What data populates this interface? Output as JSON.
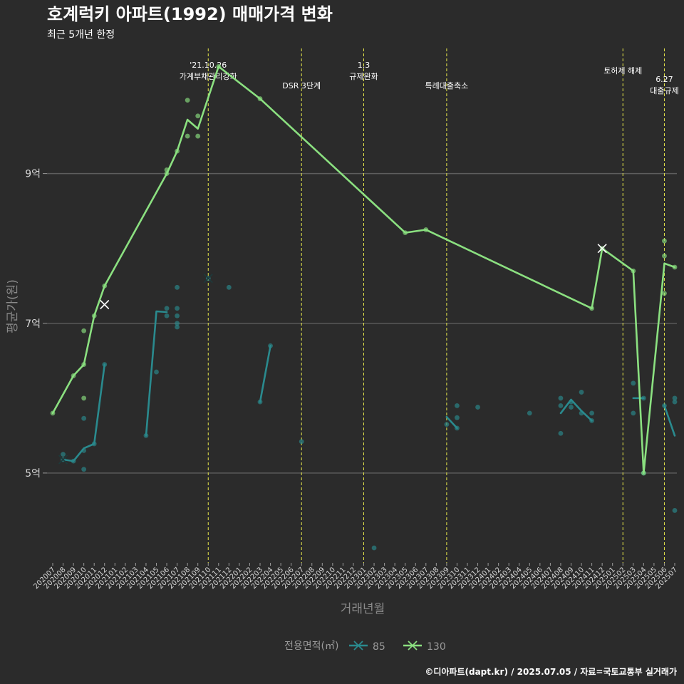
{
  "chart_data": {
    "type": "line",
    "title": "호계럭키 아파트(1992) 매매가격 변화",
    "subtitle": "최근 5개년 한정",
    "xlabel": "거래년월",
    "ylabel": "평균가(원)",
    "ylim": [
      38000,
      107000
    ],
    "y_ticks": [
      {
        "value": 50000,
        "label": "5억"
      },
      {
        "value": 70000,
        "label": "7억"
      },
      {
        "value": 90000,
        "label": "9억"
      }
    ],
    "x_categories": [
      "202007",
      "202008",
      "202009",
      "202010",
      "202011",
      "202012",
      "202101",
      "202102",
      "202103",
      "202104",
      "202105",
      "202106",
      "202107",
      "202108",
      "202109",
      "202110",
      "202111",
      "202112",
      "202201",
      "202202",
      "202203",
      "202204",
      "202205",
      "202206",
      "202207",
      "202208",
      "202209",
      "202210",
      "202211",
      "202212",
      "202301",
      "202302",
      "202303",
      "202304",
      "202305",
      "202306",
      "202307",
      "202308",
      "202309",
      "202310",
      "202311",
      "202312",
      "202401",
      "202402",
      "202403",
      "202404",
      "202405",
      "202406",
      "202407",
      "202408",
      "202409",
      "202410",
      "202411",
      "202412",
      "202501",
      "202502",
      "202503",
      "202504",
      "202505",
      "202506",
      "202507"
    ],
    "legend_title": "전용면적(㎡)",
    "series": [
      {
        "name": "85",
        "color": "#2a8a8e",
        "line_segments": [
          [
            [
              "202008",
              51800
            ],
            [
              "202009",
              51600
            ],
            [
              "202010",
              53300
            ],
            [
              "202011",
              53900
            ],
            [
              "202012",
              64500
            ]
          ],
          [
            [
              "202104",
              55000
            ],
            [
              "202105",
              71600
            ],
            [
              "202106",
              71500
            ]
          ],
          [
            [
              "202203",
              59500
            ],
            [
              "202204",
              67000
            ]
          ],
          [
            [
              "202309",
              57500
            ],
            [
              "202310",
              56000
            ]
          ],
          [
            [
              "202408",
              58000
            ],
            [
              "202409",
              59800
            ],
            [
              "202410",
              58300
            ],
            [
              "202411",
              57000
            ]
          ],
          [
            [
              "202503",
              60000
            ],
            [
              "202504",
              60000
            ]
          ],
          [
            [
              "202506",
              59000
            ],
            [
              "202507",
              55000
            ]
          ]
        ],
        "points": [
          [
            "202008",
            52500
          ],
          [
            "202008",
            51800
          ],
          [
            "202009",
            51600
          ],
          [
            "202010",
            53000
          ],
          [
            "202010",
            50500
          ],
          [
            "202010",
            57300
          ],
          [
            "202011",
            53900
          ],
          [
            "202012",
            64500
          ],
          [
            "202104",
            55000
          ],
          [
            "202105",
            63500
          ],
          [
            "202106",
            72000
          ],
          [
            "202106",
            71000
          ],
          [
            "202107",
            72000
          ],
          [
            "202107",
            71000
          ],
          [
            "202107",
            70000
          ],
          [
            "202107",
            69500
          ],
          [
            "202107",
            74800
          ],
          [
            "202110",
            76000
          ],
          [
            "202112",
            74800
          ],
          [
            "202203",
            59500
          ],
          [
            "202204",
            67000
          ],
          [
            "202207",
            54200
          ],
          [
            "202302",
            40000
          ],
          [
            "202309",
            56500
          ],
          [
            "202310",
            57400
          ],
          [
            "202310",
            56000
          ],
          [
            "202310",
            59000
          ],
          [
            "202312",
            58800
          ],
          [
            "202405",
            58000
          ],
          [
            "202408",
            60000
          ],
          [
            "202408",
            59000
          ],
          [
            "202408",
            55300
          ],
          [
            "202409",
            59500
          ],
          [
            "202409",
            58800
          ],
          [
            "202410",
            60800
          ],
          [
            "202410",
            58000
          ],
          [
            "202411",
            58000
          ],
          [
            "202411",
            57000
          ],
          [
            "202503",
            62000
          ],
          [
            "202503",
            58000
          ],
          [
            "202504",
            60000
          ],
          [
            "202504",
            50000
          ],
          [
            "202506",
            59000
          ],
          [
            "202507",
            59500
          ],
          [
            "202507",
            60000
          ],
          [
            "202507",
            45000
          ]
        ],
        "x_marks": [
          [
            "202008",
            51800
          ],
          [
            "202110",
            76000
          ]
        ]
      },
      {
        "name": "130",
        "color": "#8be080",
        "line_segments": [
          [
            [
              "202007",
              58000
            ],
            [
              "202009",
              63000
            ],
            [
              "202010",
              64500
            ],
            [
              "202011",
              71000
            ],
            [
              "202012",
              75000
            ],
            [
              "202106",
              90000
            ],
            [
              "202107",
              93000
            ],
            [
              "202108",
              97200
            ],
            [
              "202109",
              96000
            ],
            [
              "202111",
              104300
            ],
            [
              "202203",
              100000
            ],
            [
              "202305",
              82100
            ],
            [
              "202307",
              82500
            ],
            [
              "202411",
              72000
            ],
            [
              "202412",
              80000
            ],
            [
              "202503",
              77000
            ],
            [
              "202504",
              50000
            ],
            [
              "202506",
              78000
            ],
            [
              "202507",
              77500
            ]
          ]
        ],
        "points": [
          [
            "202007",
            58000
          ],
          [
            "202009",
            63000
          ],
          [
            "202010",
            64500
          ],
          [
            "202010",
            69000
          ],
          [
            "202010",
            60000
          ],
          [
            "202011",
            71000
          ],
          [
            "202012",
            75000
          ],
          [
            "202106",
            90000
          ],
          [
            "202106",
            90500
          ],
          [
            "202107",
            93000
          ],
          [
            "202108",
            99800
          ],
          [
            "202108",
            95000
          ],
          [
            "202109",
            97700
          ],
          [
            "202109",
            95000
          ],
          [
            "202111",
            104300
          ],
          [
            "202203",
            100000
          ],
          [
            "202305",
            82100
          ],
          [
            "202307",
            82500
          ],
          [
            "202411",
            72000
          ],
          [
            "202412",
            80000
          ],
          [
            "202503",
            77000
          ],
          [
            "202504",
            50000
          ],
          [
            "202506",
            81000
          ],
          [
            "202506",
            79000
          ],
          [
            "202506",
            74000
          ],
          [
            "202507",
            77500
          ]
        ],
        "x_marks": [
          [
            "202012",
            72500
          ],
          [
            "202412",
            80000
          ]
        ]
      }
    ],
    "annotations": [
      {
        "x": "202110",
        "lines": [
          "'21.10.26",
          "가계부채관리강화"
        ],
        "level": "high"
      },
      {
        "x": "202207",
        "lines": [
          "DSR 3단계"
        ],
        "level": "low"
      },
      {
        "x": "202301",
        "lines": [
          "1.3",
          "규제완화"
        ],
        "level": "high"
      },
      {
        "x": "202309",
        "lines": [
          "특례대출축소"
        ],
        "level": "low"
      },
      {
        "x": "202502",
        "lines": [
          "토허제 해제"
        ],
        "level": "mid"
      },
      {
        "x": "202506",
        "lines": [
          "6.27",
          "대출규제"
        ],
        "level": "lowest"
      }
    ]
  },
  "caption": "©디아파트(dapt.kr) / 2025.07.05 / 자료=국토교통부 실거래가"
}
